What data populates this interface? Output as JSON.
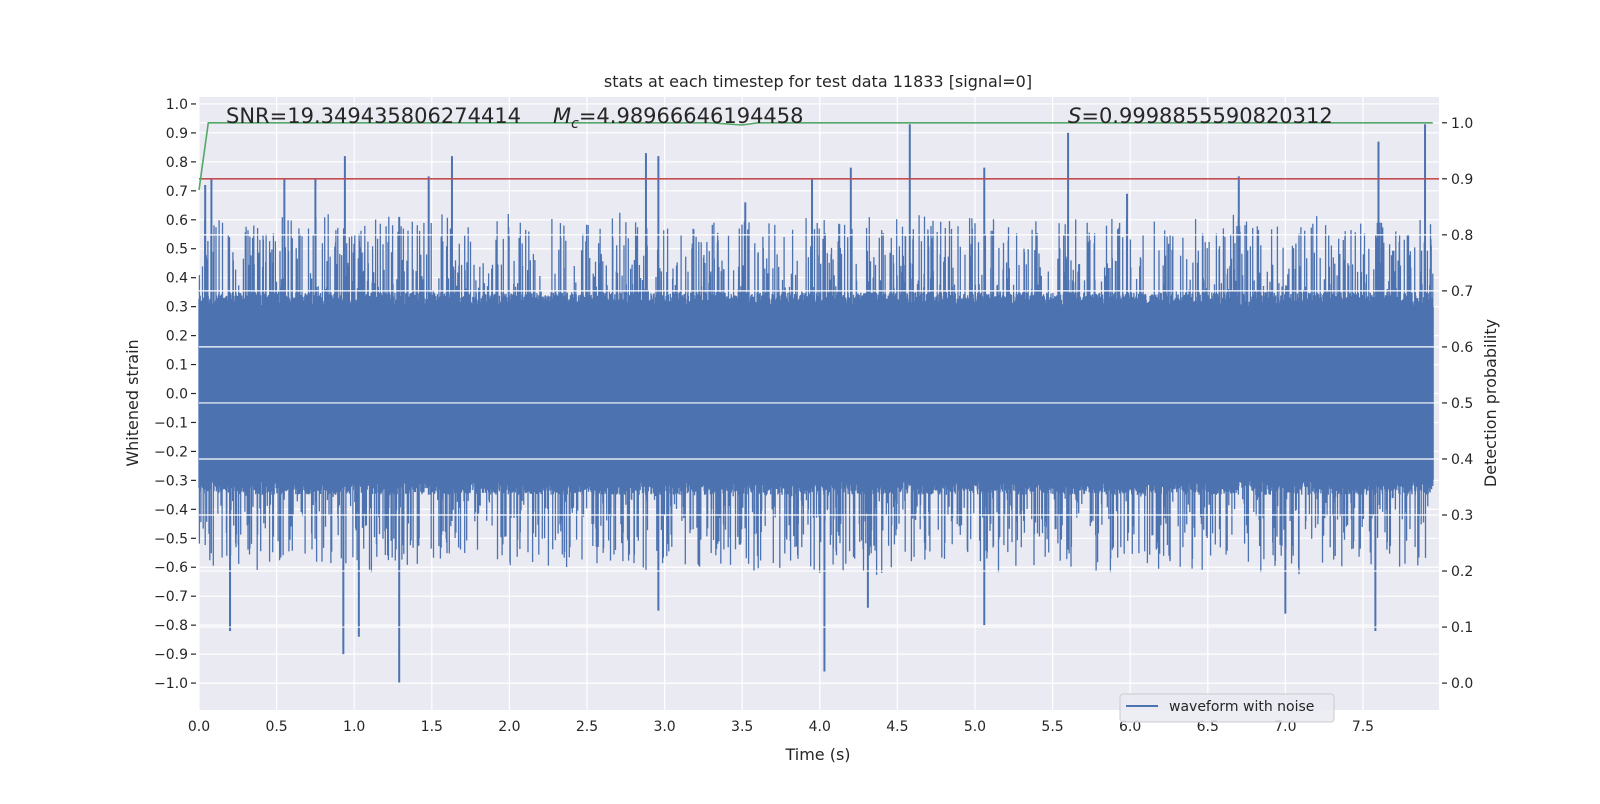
{
  "chart_data": {
    "type": "line",
    "title": "stats at each timestep for test data 11833 [signal=0]",
    "xlabel": "Time (s)",
    "ylabel": "Whitened strain",
    "ylabel_right": "Detection probability",
    "xlim": [
      0.0,
      7.99
    ],
    "ylim": [
      -1.093,
      1.024
    ],
    "ylim_right": [
      -0.048,
      1.046
    ],
    "xticks": [
      "0.0",
      "0.5",
      "1.0",
      "1.5",
      "2.0",
      "2.5",
      "3.0",
      "3.5",
      "4.0",
      "4.5",
      "5.0",
      "5.5",
      "6.0",
      "6.5",
      "7.0",
      "7.5"
    ],
    "xtick_values": [
      0,
      0.5,
      1,
      1.5,
      2,
      2.5,
      3,
      3.5,
      4,
      4.5,
      5,
      5.5,
      6,
      6.5,
      7,
      7.5
    ],
    "yticks": [
      "1.0",
      "0.9",
      "0.8",
      "0.7",
      "0.6",
      "0.5",
      "0.4",
      "0.3",
      "0.2",
      "0.1",
      "0.0",
      "−0.1",
      "−0.2",
      "−0.3",
      "−0.4",
      "−0.5",
      "−0.6",
      "−0.7",
      "−0.8",
      "−0.9",
      "−1.0"
    ],
    "ytick_values": [
      1,
      0.9,
      0.8,
      0.7,
      0.6,
      0.5,
      0.4,
      0.3,
      0.2,
      0.1,
      0,
      -0.1,
      -0.2,
      -0.3,
      -0.4,
      -0.5,
      -0.6,
      -0.7,
      -0.8,
      -0.9,
      -1
    ],
    "yticks_right": [
      "1.0",
      "0.9",
      "0.8",
      "0.7",
      "0.6",
      "0.5",
      "0.4",
      "0.3",
      "0.2",
      "0.1",
      "0.0"
    ],
    "ytick_values_right": [
      1,
      0.9,
      0.8,
      0.7,
      0.6,
      0.5,
      0.4,
      0.3,
      0.2,
      0.1,
      0
    ],
    "grid": true,
    "legend": {
      "position": "lower-right",
      "entries": [
        "waveform with noise"
      ]
    },
    "annotations": {
      "snr": "SNR=19.349435806274414",
      "mc_symbol": "M",
      "mc_sub": "c",
      "mc_value": "=4.98966646194458",
      "s_symbol": "S",
      "s_value": "=0.9998855590820312"
    },
    "series": [
      {
        "name": "waveform with noise",
        "axis": "left",
        "color": "#4c72b0",
        "noise_band": 0.35,
        "peaks": [
          {
            "t": 0.04,
            "v": 0.72
          },
          {
            "t": 0.08,
            "v": 0.74
          },
          {
            "t": 0.2,
            "v": -0.82
          },
          {
            "t": 0.55,
            "v": 0.74
          },
          {
            "t": 0.75,
            "v": 0.74
          },
          {
            "t": 0.94,
            "v": 0.82
          },
          {
            "t": 0.93,
            "v": -0.9
          },
          {
            "t": 1.03,
            "v": -0.84
          },
          {
            "t": 1.29,
            "v": -1.0
          },
          {
            "t": 1.29,
            "v": 0.61
          },
          {
            "t": 1.48,
            "v": 0.75
          },
          {
            "t": 1.63,
            "v": 0.82
          },
          {
            "t": 2.88,
            "v": 0.83
          },
          {
            "t": 2.96,
            "v": 0.82
          },
          {
            "t": 2.96,
            "v": -0.75
          },
          {
            "t": 3.52,
            "v": 0.66
          },
          {
            "t": 3.95,
            "v": 0.74
          },
          {
            "t": 4.03,
            "v": -0.96
          },
          {
            "t": 4.2,
            "v": 0.78
          },
          {
            "t": 4.31,
            "v": -0.74
          },
          {
            "t": 4.58,
            "v": 0.93
          },
          {
            "t": 5.06,
            "v": 0.78
          },
          {
            "t": 5.06,
            "v": -0.8
          },
          {
            "t": 5.6,
            "v": 0.9
          },
          {
            "t": 5.98,
            "v": 0.69
          },
          {
            "t": 6.7,
            "v": 0.75
          },
          {
            "t": 7.0,
            "v": -0.76
          },
          {
            "t": 7.58,
            "v": -0.82
          },
          {
            "t": 7.6,
            "v": 0.87
          },
          {
            "t": 7.9,
            "v": 0.93
          }
        ]
      },
      {
        "name": "detection probability",
        "axis": "right",
        "color": "#55a868",
        "x": [
          0.0,
          0.06,
          3.3,
          3.5,
          3.6,
          7.95
        ],
        "y": [
          0.88,
          1.0,
          1.0,
          0.996,
          1.0,
          1.0
        ]
      },
      {
        "name": "threshold",
        "axis": "right",
        "color": "#c44e52",
        "x": [
          0.0,
          7.99
        ],
        "y": [
          0.9,
          0.9
        ]
      }
    ]
  }
}
